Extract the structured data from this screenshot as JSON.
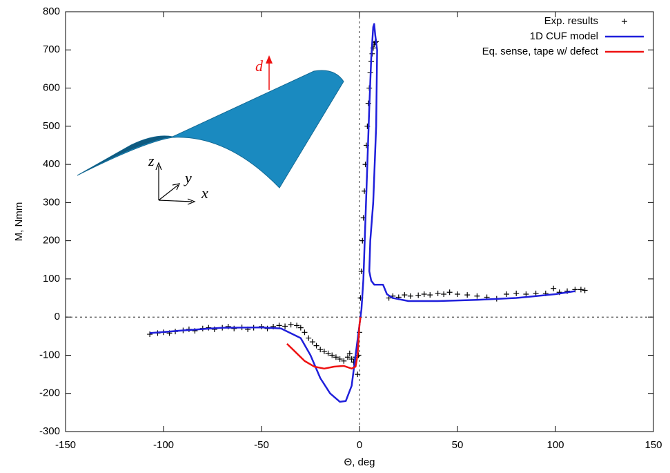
{
  "chart_data": {
    "type": "line",
    "xlabel": "Θ, deg",
    "ylabel": "M, Nmm",
    "xlim": [
      -150,
      150
    ],
    "xticks": [
      -150,
      -100,
      -50,
      0,
      50,
      100,
      150
    ],
    "ylim": [
      -300,
      800
    ],
    "yticks": [
      -300,
      -200,
      -100,
      0,
      100,
      200,
      300,
      400,
      500,
      600,
      700,
      800
    ],
    "zero_lines": true,
    "legend": "upper right",
    "inset_labels": [
      "z",
      "y",
      "x",
      "d"
    ],
    "series": [
      {
        "name": "Exp. results",
        "color": "#000000",
        "style": "points",
        "x": [
          -107,
          -103,
          -100,
          -97,
          -94,
          -90,
          -87,
          -84,
          -80,
          -77,
          -74,
          -70,
          -67,
          -64,
          -60,
          -57,
          -54,
          -50,
          -47,
          -44,
          -41,
          -38,
          -35,
          -32,
          -30,
          -28,
          -26,
          -24,
          -22,
          -20,
          -18,
          -16,
          -14,
          -12,
          -10,
          -8,
          -6,
          -5,
          -4,
          -3,
          -2,
          -1,
          -0.5,
          0,
          0.5,
          1,
          1.5,
          2,
          2.5,
          3,
          3.5,
          4,
          4.5,
          5,
          5.5,
          6,
          6.5,
          7,
          7.5,
          8,
          8.5,
          15,
          17,
          20,
          23,
          26,
          30,
          33,
          36,
          40,
          43,
          46,
          50,
          55,
          60,
          65,
          70,
          75,
          80,
          85,
          90,
          95,
          99,
          102,
          106,
          110,
          113,
          115
        ],
        "values": [
          -45,
          -42,
          -40,
          -42,
          -38,
          -35,
          -32,
          -36,
          -30,
          -28,
          -32,
          -28,
          -25,
          -30,
          -27,
          -32,
          -28,
          -25,
          -30,
          -25,
          -22,
          -24,
          -20,
          -22,
          -28,
          -40,
          -55,
          -65,
          -75,
          -85,
          -90,
          -95,
          -100,
          -105,
          -110,
          -115,
          -105,
          -95,
          -110,
          -118,
          -105,
          -150,
          -100,
          -40,
          50,
          120,
          200,
          260,
          330,
          400,
          450,
          500,
          560,
          600,
          640,
          670,
          690,
          705,
          715,
          720,
          722,
          50,
          55,
          52,
          58,
          55,
          57,
          60,
          58,
          62,
          60,
          65,
          60,
          58,
          55,
          52,
          48,
          60,
          62,
          60,
          62,
          62,
          75,
          65,
          68,
          72,
          72,
          70
        ]
      },
      {
        "name": "1D CUF model",
        "color": "#1f1fdb",
        "style": "line",
        "x": [
          -107,
          -90,
          -70,
          -50,
          -40,
          -30,
          -25,
          -20,
          -15,
          -10,
          -7,
          -4,
          -2,
          0,
          1,
          2,
          3,
          4,
          5,
          6,
          7,
          7.5,
          8,
          9,
          8.5,
          7,
          5.5,
          5,
          6,
          7.5,
          10,
          12,
          14,
          17,
          25,
          40,
          60,
          80,
          100,
          110
        ],
        "values": [
          -42,
          -35,
          -28,
          -27,
          -30,
          -55,
          -100,
          -160,
          -200,
          -222,
          -220,
          -180,
          -100,
          -20,
          20,
          100,
          250,
          400,
          550,
          680,
          760,
          768,
          740,
          700,
          500,
          300,
          200,
          120,
          95,
          85,
          85,
          85,
          60,
          50,
          42,
          42,
          45,
          50,
          60,
          68
        ]
      },
      {
        "name": "Eq. sense, tape w/ defect",
        "color": "#ee1111",
        "style": "line",
        "x": [
          -37,
          -33,
          -28,
          -23,
          -18,
          -13,
          -8,
          -4,
          -2,
          -1,
          0,
          0.5
        ],
        "values": [
          -70,
          -90,
          -115,
          -130,
          -135,
          -130,
          -128,
          -135,
          -130,
          -100,
          -20,
          0
        ]
      }
    ]
  }
}
